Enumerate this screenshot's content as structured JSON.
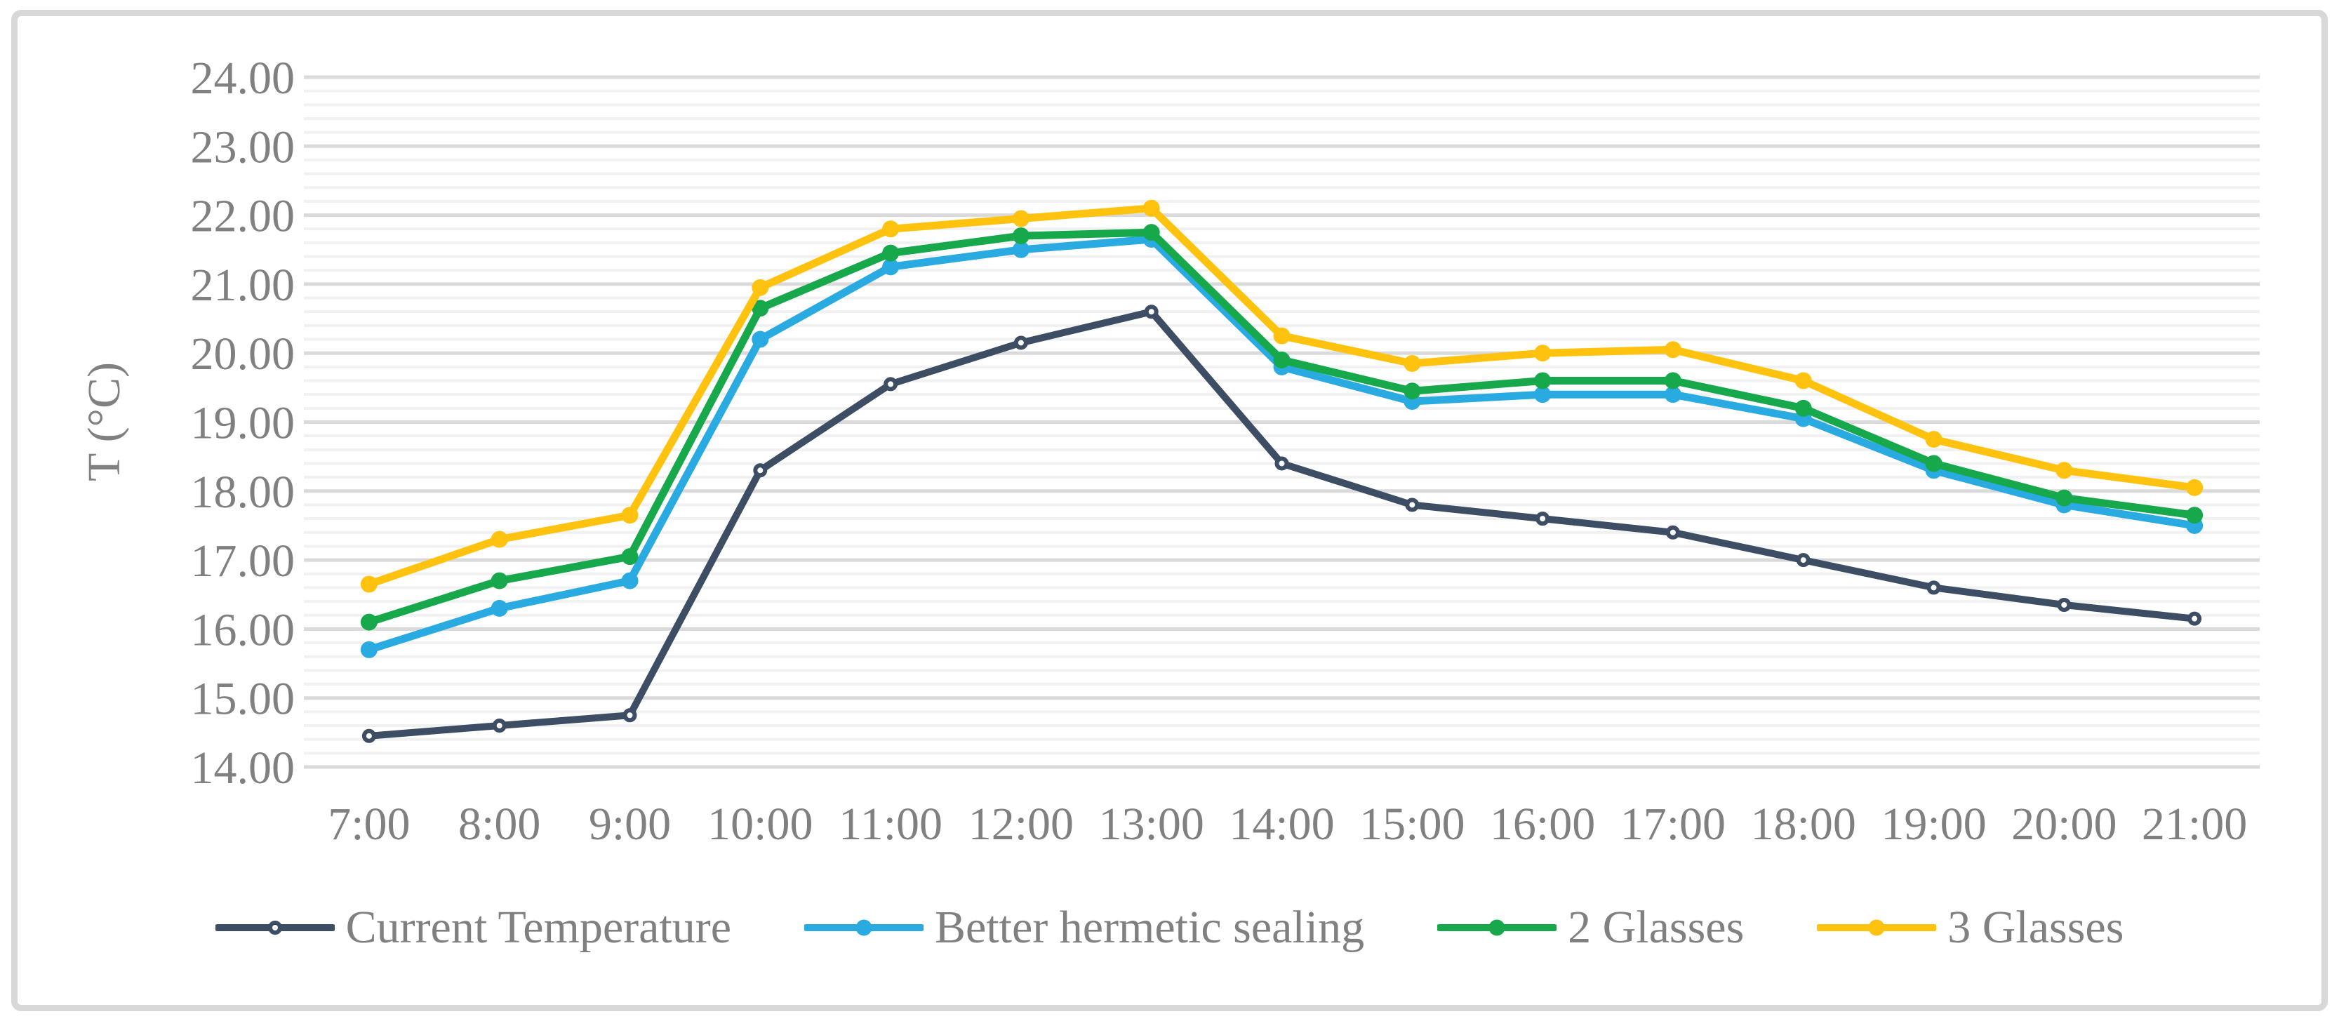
{
  "figure": {
    "background": "#ffffff",
    "border_color": "#d8d8d8"
  },
  "chart_data": {
    "type": "line",
    "title": "",
    "xlabel": "",
    "ylabel": "T (°C)",
    "ylim": [
      14,
      24
    ],
    "ytick_step": 1.0,
    "minor_gridline_step": 0.2,
    "grid": "horizontal major and minor, no vertical gridlines",
    "legend_position": "bottom-center",
    "axis_text_color": "#808080",
    "gridline_major_color": "#dadada",
    "gridline_minor_color": "#f1f1f1",
    "ytick_labels": [
      "14.00",
      "15.00",
      "16.00",
      "17.00",
      "18.00",
      "19.00",
      "20.00",
      "21.00",
      "22.00",
      "23.00",
      "24.00"
    ],
    "categories": [
      "7:00",
      "8:00",
      "9:00",
      "10:00",
      "11:00",
      "12:00",
      "13:00",
      "14:00",
      "15:00",
      "16:00",
      "17:00",
      "18:00",
      "19:00",
      "20:00",
      "21:00"
    ],
    "series": [
      {
        "name": "Current Temperature",
        "color": "#3d4d63",
        "marker": "open-circle",
        "values": [
          14.45,
          14.6,
          14.75,
          18.3,
          19.55,
          20.15,
          20.6,
          18.4,
          17.8,
          17.6,
          17.4,
          17.0,
          16.6,
          16.35,
          16.15
        ]
      },
      {
        "name": "Better hermetic sealing",
        "color": "#29abe2",
        "marker": "filled-circle",
        "values": [
          15.7,
          16.3,
          16.7,
          20.2,
          21.25,
          21.5,
          21.65,
          19.8,
          19.3,
          19.4,
          19.4,
          19.05,
          18.3,
          17.8,
          17.5
        ]
      },
      {
        "name": "2 Glasses",
        "color": "#17a84c",
        "marker": "filled-circle",
        "values": [
          16.1,
          16.7,
          17.05,
          20.65,
          21.45,
          21.7,
          21.75,
          19.9,
          19.45,
          19.6,
          19.6,
          19.2,
          18.4,
          17.9,
          17.65
        ]
      },
      {
        "name": "3 Glasses",
        "color": "#ffc20e",
        "marker": "filled-circle",
        "values": [
          16.65,
          17.3,
          17.65,
          20.95,
          21.8,
          21.95,
          22.1,
          20.25,
          19.85,
          20.0,
          20.05,
          19.6,
          18.75,
          18.3,
          18.05
        ]
      }
    ]
  }
}
